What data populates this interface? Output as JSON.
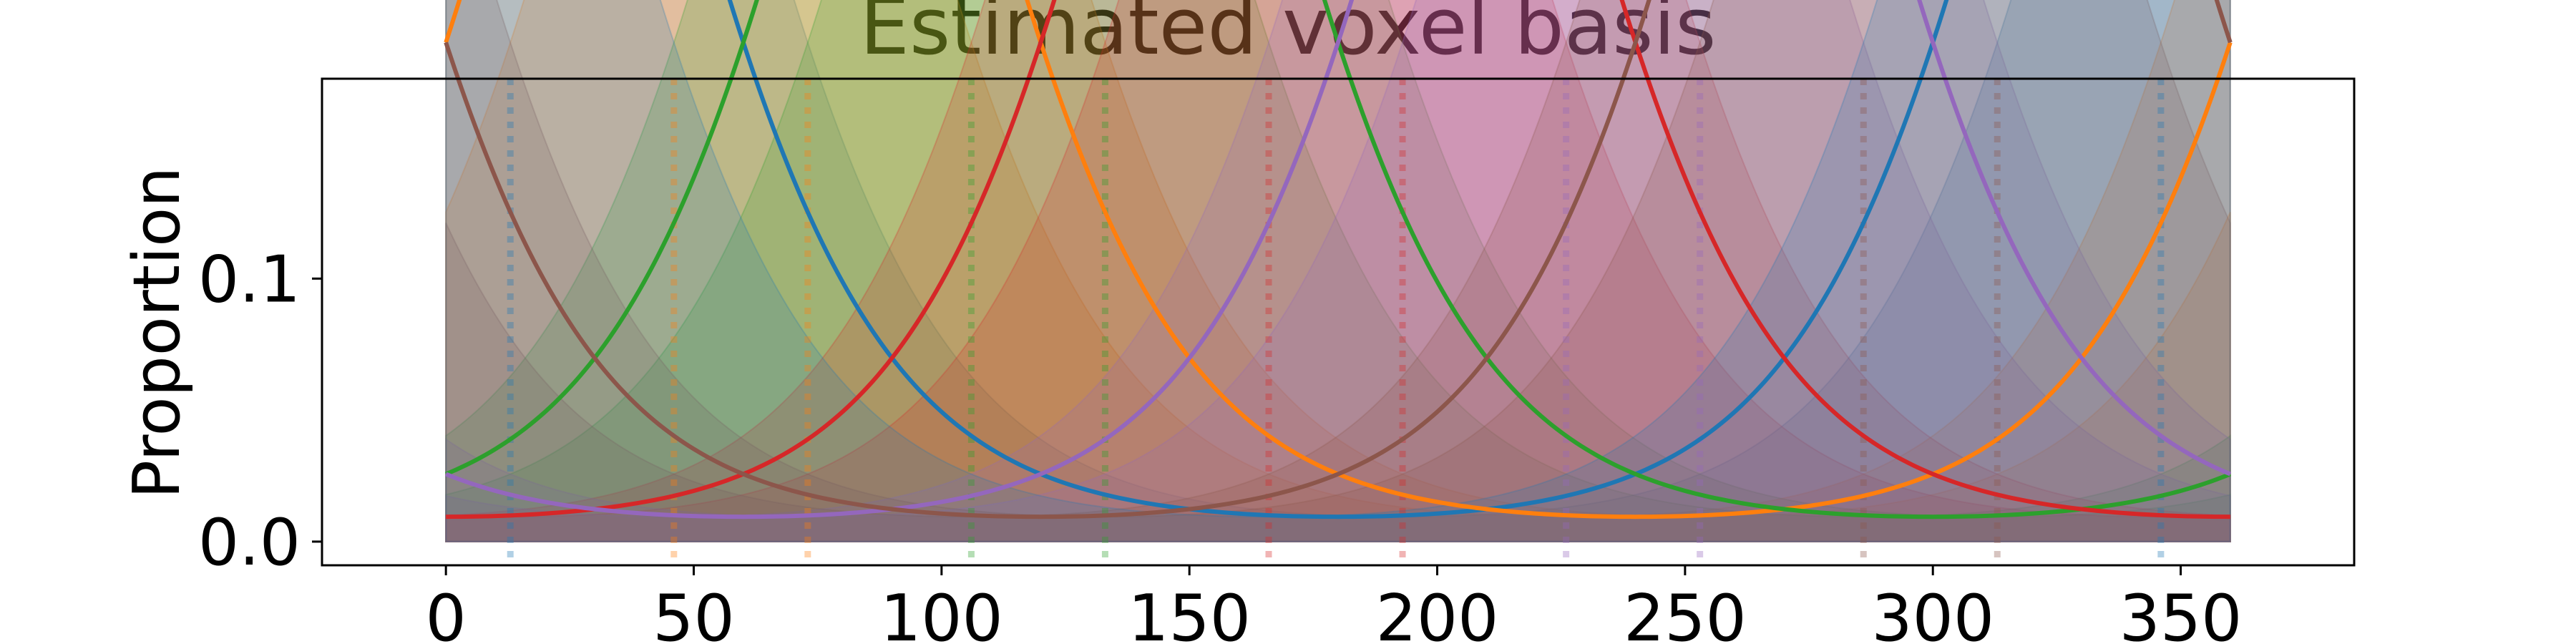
{
  "chart_data": {
    "type": "line",
    "title": "Estimated voxel basis",
    "xlabel": "",
    "ylabel": "Proportion",
    "xlim": [
      -25,
      385
    ],
    "ylim": [
      -0.009,
      0.176
    ],
    "xticks": [
      0,
      50,
      100,
      150,
      200,
      250,
      300,
      350
    ],
    "xtick_labels": [
      "0",
      "50",
      "100",
      "150",
      "200",
      "250",
      "300",
      "350"
    ],
    "yticks": [
      0.0,
      0.1
    ],
    "ytick_labels": [
      "0.0",
      "0.1"
    ],
    "grid": false,
    "legend": "none",
    "basis": {
      "function": "von_mises_normalized",
      "kappa": 2.0,
      "period": 360,
      "x_step": 1,
      "x_range": [
        0,
        360
      ]
    },
    "series": [
      {
        "center": 0,
        "color": "#1f77b4"
      },
      {
        "center": 60,
        "color": "#ff7f0e"
      },
      {
        "center": 120,
        "color": "#2ca02c"
      },
      {
        "center": 180,
        "color": "#d62728"
      },
      {
        "center": 240,
        "color": "#9467bd"
      },
      {
        "center": 300,
        "color": "#8c564b"
      }
    ],
    "band_series": [
      {
        "center": 13,
        "color": "#1f77b4"
      },
      {
        "center": 46,
        "color": "#ff7f0e"
      },
      {
        "center": 73,
        "color": "#ff7f0e"
      },
      {
        "center": 106,
        "color": "#2ca02c"
      },
      {
        "center": 133,
        "color": "#2ca02c"
      },
      {
        "center": 166,
        "color": "#d62728"
      },
      {
        "center": 193,
        "color": "#d62728"
      },
      {
        "center": 226,
        "color": "#9467bd"
      },
      {
        "center": 253,
        "color": "#9467bd"
      },
      {
        "center": 286,
        "color": "#8c564b"
      },
      {
        "center": 313,
        "color": "#8c564b"
      },
      {
        "center": 346,
        "color": "#1f77b4"
      }
    ],
    "vertical_markers": [
      13,
      46,
      73,
      106,
      133,
      166,
      193,
      226,
      253,
      286,
      313,
      346
    ]
  }
}
